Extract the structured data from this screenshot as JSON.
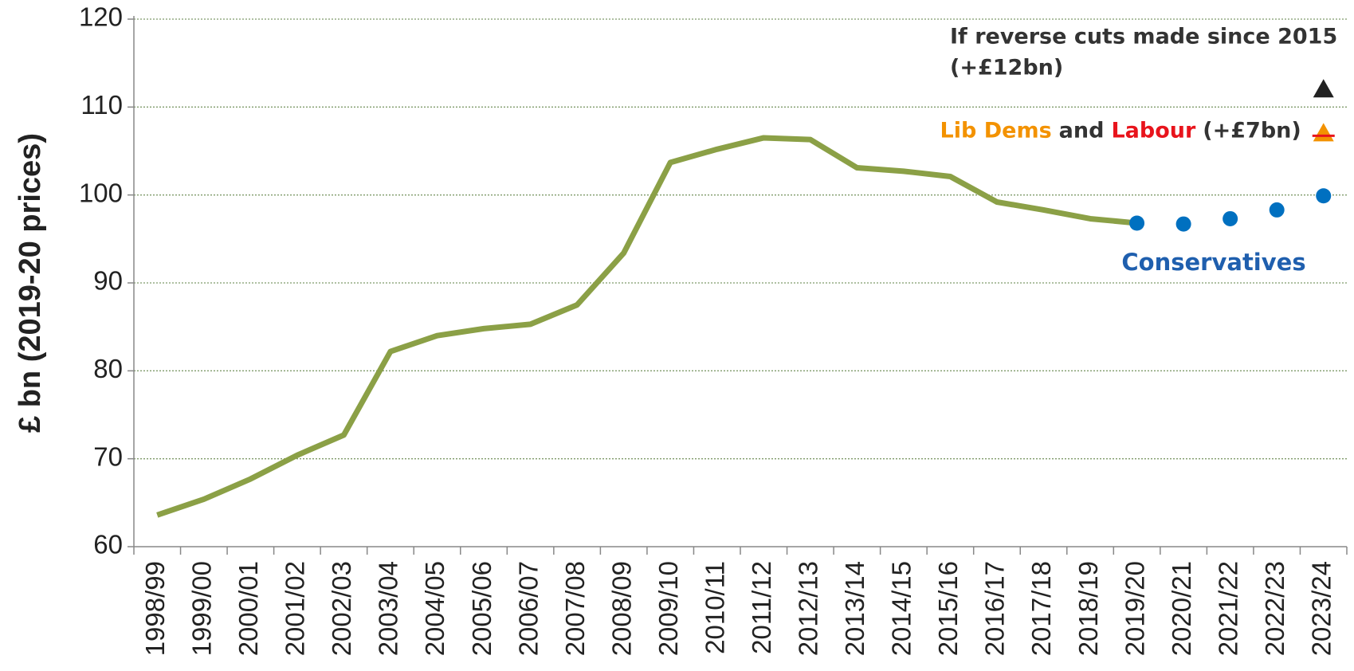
{
  "chart_data": {
    "type": "line",
    "y_label": "£ bn (2019-20 prices)",
    "categories": [
      "1998/99",
      "1999/00",
      "2000/01",
      "2001/02",
      "2002/03",
      "2003/04",
      "2004/05",
      "2005/06",
      "2006/07",
      "2007/08",
      "2008/09",
      "2009/10",
      "2010/11",
      "2011/12",
      "2012/13",
      "2013/14",
      "2014/15",
      "2015/16",
      "2016/17",
      "2017/18",
      "2018/19",
      "2019/20",
      "2020/21",
      "2021/22",
      "2022/23",
      "2023/24"
    ],
    "series": [
      {
        "color": "#8ba046",
        "marker": "line",
        "values": [
          63.6,
          65.4,
          67.7,
          70.4,
          72.7,
          82.2,
          84.0,
          84.8,
          85.3,
          87.5,
          93.4,
          103.7,
          105.2,
          106.5,
          106.3,
          103.1,
          102.7,
          102.1,
          99.2,
          98.3,
          97.3,
          96.8,
          null,
          null,
          null,
          null
        ]
      },
      {
        "name": "Conservatives",
        "color": "#0070c0",
        "marker": "circle",
        "values": [
          null,
          null,
          null,
          null,
          null,
          null,
          null,
          null,
          null,
          null,
          null,
          null,
          null,
          null,
          null,
          null,
          null,
          null,
          null,
          null,
          null,
          96.8,
          96.7,
          97.3,
          98.3,
          99.9
        ]
      },
      {
        "color": "#f39200",
        "stripe": "#e8141c",
        "marker": "triangle",
        "values": [
          null,
          null,
          null,
          null,
          null,
          null,
          null,
          null,
          null,
          null,
          null,
          null,
          null,
          null,
          null,
          null,
          null,
          null,
          null,
          null,
          null,
          null,
          null,
          null,
          null,
          107
        ]
      },
      {
        "color": "#222222",
        "marker": "triangle",
        "values": [
          null,
          null,
          null,
          null,
          null,
          null,
          null,
          null,
          null,
          null,
          null,
          null,
          null,
          null,
          null,
          null,
          null,
          null,
          null,
          null,
          null,
          null,
          null,
          null,
          null,
          112
        ]
      }
    ],
    "annotations": {
      "reverse": [
        "If reverse cuts made since 2015",
        "(+£12bn)"
      ],
      "parties": [
        {
          "text": "Lib Dems",
          "color": "#f39200"
        },
        {
          "text": "and",
          "color": "#333333"
        },
        {
          "text": "Labour",
          "color": "#e8141c"
        },
        {
          "text": "(+£7bn)",
          "color": "#333333"
        }
      ]
    },
    "ylim": [
      60,
      120
    ],
    "yticks": [
      60,
      70,
      80,
      90,
      100,
      110,
      120
    ],
    "grid": true
  }
}
